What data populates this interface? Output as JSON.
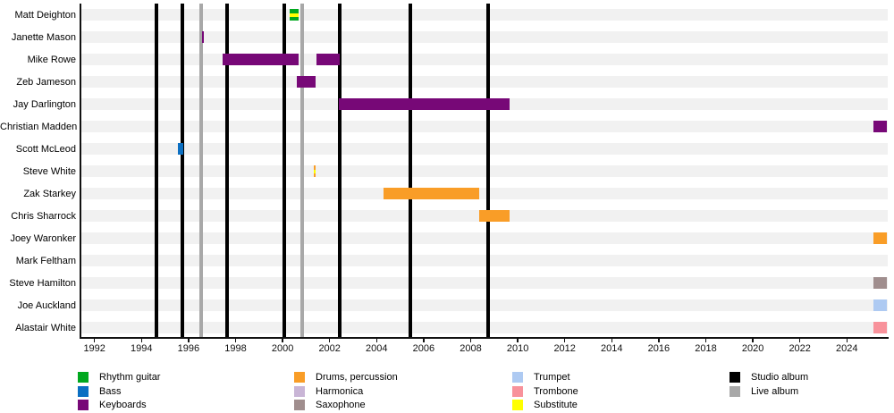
{
  "colors": {
    "rhythm_guitar": "#00a81e",
    "bass": "#0b6fc2",
    "keyboards": "#770877",
    "drums": "#f99d27",
    "harmonica": "#c9b5d6",
    "saxophone": "#a08e8e",
    "trumpet": "#aecaf2",
    "trombone": "#f8929b",
    "substitute": "#ffff00",
    "studio_album": "#000000",
    "live_album": "#a8a8a8"
  },
  "chart_data": {
    "type": "timeline",
    "title": "",
    "x_axis": {
      "tick_years": [
        1992,
        1994,
        1996,
        1998,
        2000,
        2002,
        2004,
        2006,
        2008,
        2010,
        2012,
        2014,
        2016,
        2018,
        2020,
        2022,
        2024
      ],
      "min_year": 1991.4,
      "max_year": 2025.7
    },
    "rows": [
      {
        "member": "Matt Deighton",
        "bars": [
          {
            "instrument": "rhythm_guitar",
            "start": 2000.29,
            "end": 2000.69,
            "substitute": true
          }
        ]
      },
      {
        "member": "Janette Mason",
        "bars": [
          {
            "instrument": "keyboards",
            "start": 1996.56,
            "end": 1996.66,
            "substitute": false
          }
        ]
      },
      {
        "member": "Mike Rowe",
        "bars": [
          {
            "instrument": "keyboards",
            "start": 1997.43,
            "end": 2000.67,
            "substitute": false
          },
          {
            "instrument": "keyboards",
            "start": 2001.43,
            "end": 2002.44,
            "substitute": false
          }
        ]
      },
      {
        "member": "Zeb Jameson",
        "bars": [
          {
            "instrument": "keyboards",
            "start": 2000.62,
            "end": 2001.42,
            "substitute": false
          }
        ]
      },
      {
        "member": "Jay Darlington",
        "bars": [
          {
            "instrument": "keyboards",
            "start": 2002.4,
            "end": 2009.67,
            "substitute": false
          }
        ]
      },
      {
        "member": "Christian Madden",
        "bars": [
          {
            "instrument": "keyboards",
            "start": 2025.14,
            "end": 2025.7,
            "substitute": false
          }
        ]
      },
      {
        "member": "Scott McLeod",
        "bars": [
          {
            "instrument": "bass",
            "start": 1995.54,
            "end": 1995.79,
            "substitute": false
          }
        ]
      },
      {
        "member": "Steve White",
        "bars": [
          {
            "instrument": "drums",
            "start": 2001.32,
            "end": 2001.42,
            "substitute": true
          }
        ]
      },
      {
        "member": "Zak Starkey",
        "bars": [
          {
            "instrument": "drums",
            "start": 2004.28,
            "end": 2008.35,
            "substitute": false
          }
        ]
      },
      {
        "member": "Chris Sharrock",
        "bars": [
          {
            "instrument": "drums",
            "start": 2008.35,
            "end": 2009.66,
            "substitute": false
          }
        ]
      },
      {
        "member": "Joey Waronker",
        "bars": [
          {
            "instrument": "drums",
            "start": 2025.14,
            "end": 2025.7,
            "substitute": false
          }
        ]
      },
      {
        "member": "Mark Feltham",
        "bars": []
      },
      {
        "member": "Steve Hamilton",
        "bars": [
          {
            "instrument": "saxophone",
            "start": 2025.14,
            "end": 2025.7,
            "substitute": false
          }
        ]
      },
      {
        "member": "Joe Auckland",
        "bars": [
          {
            "instrument": "trumpet",
            "start": 2025.14,
            "end": 2025.7,
            "substitute": false
          }
        ]
      },
      {
        "member": "Alastair White",
        "bars": [
          {
            "instrument": "trombone",
            "start": 2025.14,
            "end": 2025.7,
            "substitute": false
          }
        ]
      }
    ],
    "albums": [
      {
        "type": "studio",
        "year": 1994.65
      },
      {
        "type": "studio",
        "year": 1995.75
      },
      {
        "type": "live",
        "year": 1996.55
      },
      {
        "type": "studio",
        "year": 1997.62
      },
      {
        "type": "studio",
        "year": 2000.09
      },
      {
        "type": "live",
        "year": 2000.83
      },
      {
        "type": "studio",
        "year": 2002.42
      },
      {
        "type": "studio",
        "year": 2005.42
      },
      {
        "type": "studio",
        "year": 2008.75
      }
    ]
  },
  "legend": {
    "columns": [
      [
        {
          "label": "Rhythm guitar",
          "color": "rhythm_guitar"
        },
        {
          "label": "Bass",
          "color": "bass"
        },
        {
          "label": "Keyboards",
          "color": "keyboards"
        }
      ],
      [
        {
          "label": "Drums, percussion",
          "color": "drums"
        },
        {
          "label": "Harmonica",
          "color": "harmonica"
        },
        {
          "label": "Saxophone",
          "color": "saxophone"
        }
      ],
      [
        {
          "label": "Trumpet",
          "color": "trumpet"
        },
        {
          "label": "Trombone",
          "color": "trombone"
        },
        {
          "label": "Substitute",
          "color": "substitute"
        }
      ],
      [
        {
          "label": "Studio album",
          "color": "studio_album"
        },
        {
          "label": "Live album",
          "color": "live_album"
        }
      ]
    ]
  }
}
